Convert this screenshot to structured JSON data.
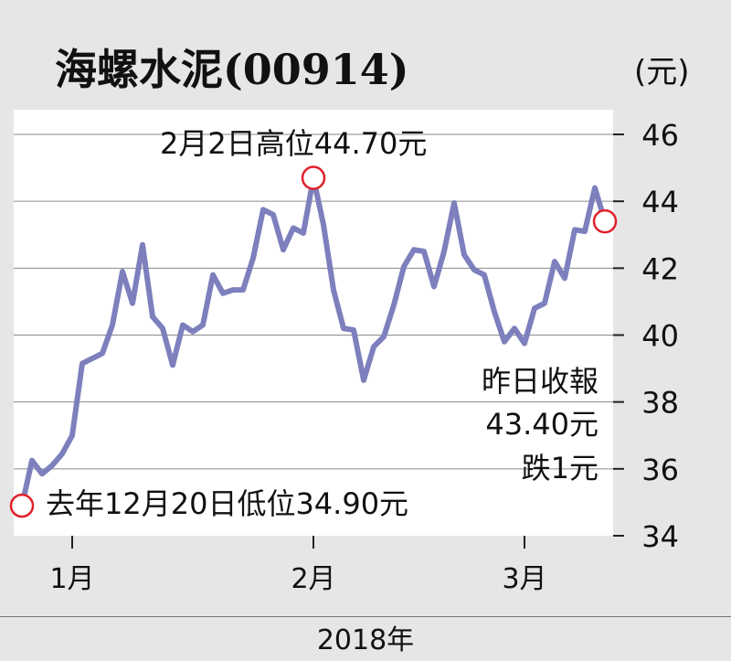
{
  "chart_data": {
    "type": "line",
    "title": "海螺水泥(00914)",
    "unit": "(元)",
    "xlabel": "2018年",
    "x_tick_labels": [
      "1月",
      "2月",
      "3月"
    ],
    "ylim": [
      34,
      46
    ],
    "y_ticks": [
      "46",
      "44",
      "42",
      "40",
      "38",
      "36",
      "34"
    ],
    "grid": true,
    "line_color": "#7d80bd",
    "marker_color": "#e0202a",
    "series": [
      {
        "values": [
          34.9,
          36.25,
          35.85,
          36.1,
          36.45,
          37.0,
          39.15,
          39.3,
          39.45,
          40.3,
          41.9,
          40.95,
          42.7,
          40.55,
          40.2,
          39.1,
          40.3,
          40.1,
          40.3,
          41.8,
          41.25,
          41.35,
          41.35,
          42.3,
          43.75,
          43.6,
          42.55,
          43.2,
          43.05,
          44.7,
          43.3,
          41.35,
          40.2,
          40.15,
          38.65,
          39.65,
          39.95,
          40.9,
          42.05,
          42.55,
          42.5,
          41.45,
          42.5,
          43.95,
          42.4,
          41.95,
          41.8,
          40.7,
          39.8,
          40.2,
          39.75,
          40.8,
          40.95,
          42.2,
          41.7,
          43.15,
          43.1,
          44.4,
          43.4
        ]
      }
    ],
    "annotations": [
      {
        "text": "2月2日高位44.70元",
        "point_index": 29
      },
      {
        "text": "去年12月20日低位34.90元",
        "point_index": 0
      },
      {
        "text": "昨日收報",
        "point_index": 58
      },
      {
        "text": "43.40元",
        "point_index": 58
      },
      {
        "text": "跌1元",
        "point_index": 58
      }
    ],
    "x_tick_indices": [
      5,
      29,
      50
    ]
  }
}
